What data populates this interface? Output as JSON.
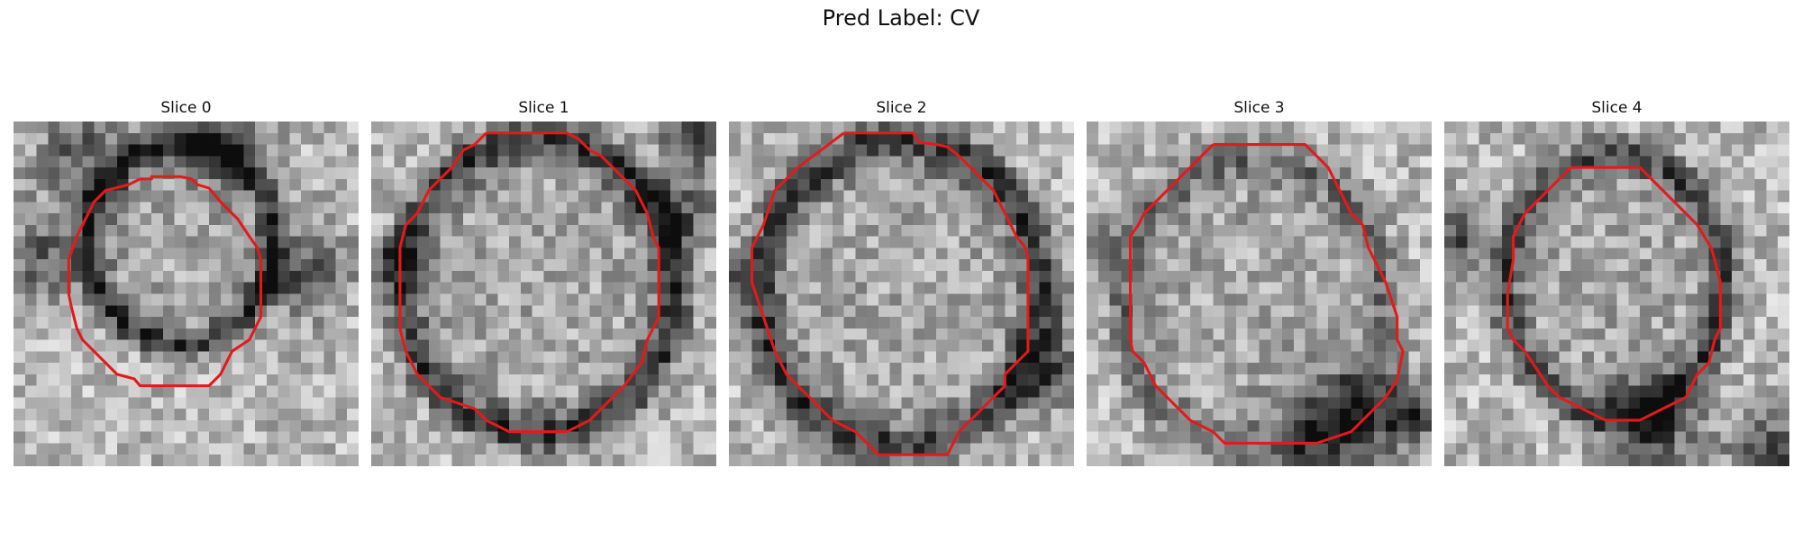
{
  "figure": {
    "title": "Pred Label: CV"
  },
  "colors": {
    "contour": "#e31a1c"
  },
  "panels": [
    {
      "title": "Slice 0"
    },
    {
      "title": "Slice 1"
    },
    {
      "title": "Slice 2"
    },
    {
      "title": "Slice 3"
    },
    {
      "title": "Slice 4"
    }
  ]
}
